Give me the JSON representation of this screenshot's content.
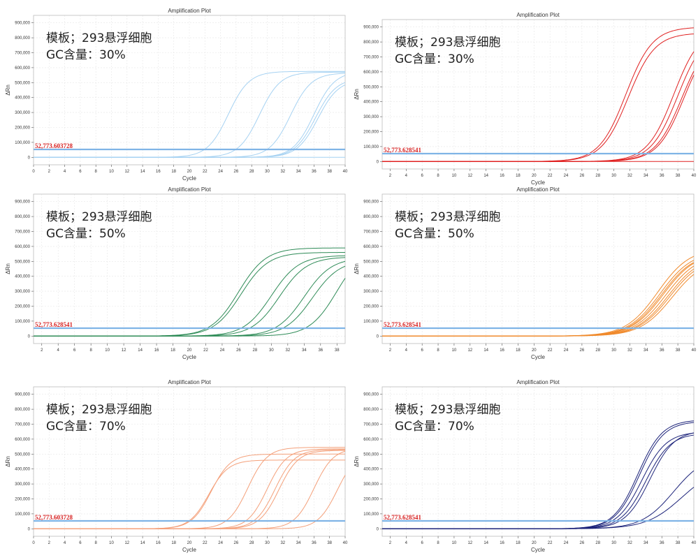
{
  "colors": {
    "threshold": "#7fb4e6",
    "grid": "#e6e6e6",
    "frame": "#bdbdbd",
    "threshold_text": "#d62020"
  },
  "chart_data": [
    {
      "type": "line",
      "title": "Amplification Plot",
      "xlabel": "Cycle",
      "ylabel": "ΔRn",
      "xlim": [
        0,
        40
      ],
      "ylim": [
        -50000,
        950000
      ],
      "xticks": [
        0,
        2,
        4,
        6,
        8,
        10,
        12,
        14,
        16,
        18,
        20,
        22,
        24,
        26,
        28,
        30,
        32,
        34,
        36,
        38,
        40
      ],
      "yticks": [
        0,
        100000,
        200000,
        300000,
        400000,
        500000,
        600000,
        700000,
        800000,
        900000
      ],
      "ytick_labels": [
        "0",
        "100,000",
        "200,000",
        "300,000",
        "400,000",
        "500,000",
        "600,000",
        "700,000",
        "800,000",
        "900,000"
      ],
      "threshold": 52773.603728,
      "threshold_label": "52,773.603728",
      "overlay": [
        "模板；293悬浮细胞",
        "GC含量：30%"
      ],
      "color": "#a6d2f2",
      "series": [
        {
          "plateau": 575000,
          "ct": 25.0,
          "k": 0.75
        },
        {
          "plateau": 570000,
          "ct": 29.0,
          "k": 0.75
        },
        {
          "plateau": 565000,
          "ct": 33.0,
          "k": 0.75
        },
        {
          "plateau": 575000,
          "ct": 36.0,
          "k": 0.75
        },
        {
          "plateau": 530000,
          "ct": 36.2,
          "k": 0.75
        },
        {
          "plateau": 520000,
          "ct": 36.5,
          "k": 0.75
        },
        {
          "plateau": 0,
          "ct": 40,
          "k": 0.5
        }
      ]
    },
    {
      "type": "line",
      "title": "Amplification Plot",
      "xlabel": "Cycle",
      "ylabel": "ΔRn",
      "xlim": [
        1,
        40
      ],
      "ylim": [
        -50000,
        950000
      ],
      "xticks": [
        2,
        4,
        6,
        8,
        10,
        12,
        14,
        16,
        18,
        20,
        22,
        24,
        26,
        28,
        30,
        32,
        34,
        36,
        38,
        40
      ],
      "yticks": [
        0,
        100000,
        200000,
        300000,
        400000,
        500000,
        600000,
        700000,
        800000,
        900000
      ],
      "ytick_labels": [
        "0",
        "100,000",
        "200,000",
        "300,000",
        "400,000",
        "500,000",
        "600,000",
        "700,000",
        "800,000",
        "900,000"
      ],
      "threshold": 52773.628541,
      "threshold_label": "52,773.628541",
      "overlay": [
        "模板；293悬浮细胞",
        "GC含量：30%"
      ],
      "color": "#e02020",
      "series": [
        {
          "plateau": 900000,
          "ct": 31.5,
          "k": 0.6
        },
        {
          "plateau": 860000,
          "ct": 31.8,
          "k": 0.6
        },
        {
          "plateau": 900000,
          "ct": 37.5,
          "k": 0.6
        },
        {
          "plateau": 880000,
          "ct": 38.0,
          "k": 0.6
        },
        {
          "plateau": 850000,
          "ct": 38.5,
          "k": 0.6
        },
        {
          "plateau": 860000,
          "ct": 38.8,
          "k": 0.6
        },
        {
          "plateau": 0,
          "ct": 40,
          "k": 0.5
        }
      ]
    },
    {
      "type": "line",
      "title": "Amplification Plot",
      "xlabel": "Cycle",
      "ylabel": "ΔRn",
      "xlim": [
        1,
        39
      ],
      "ylim": [
        -50000,
        950000
      ],
      "xticks": [
        2,
        4,
        6,
        8,
        10,
        12,
        14,
        16,
        18,
        20,
        22,
        24,
        26,
        28,
        30,
        32,
        34,
        36,
        38
      ],
      "yticks": [
        0,
        100000,
        200000,
        300000,
        400000,
        500000,
        600000,
        700000,
        800000,
        900000
      ],
      "ytick_labels": [
        "0",
        "100,000",
        "200,000",
        "300,000",
        "400,000",
        "500,000",
        "600,000",
        "700,000",
        "800,000",
        "900,000"
      ],
      "threshold": 52773.628541,
      "threshold_label": "52,773.628541",
      "overlay": [
        "模板；293悬浮细胞",
        "GC含量：50%"
      ],
      "color": "#2e8b57",
      "series": [
        {
          "plateau": 590000,
          "ct": 26.0,
          "k": 0.6
        },
        {
          "plateau": 560000,
          "ct": 26.3,
          "k": 0.6
        },
        {
          "plateau": 540000,
          "ct": 30.0,
          "k": 0.6
        },
        {
          "plateau": 530000,
          "ct": 31.0,
          "k": 0.6
        },
        {
          "plateau": 525000,
          "ct": 34.0,
          "k": 0.6
        },
        {
          "plateau": 510000,
          "ct": 35.0,
          "k": 0.6
        },
        {
          "plateau": 600000,
          "ct": 38.0,
          "k": 0.6
        }
      ]
    },
    {
      "type": "line",
      "title": "Amplification Plot",
      "xlabel": "Cycle",
      "ylabel": "ΔRn",
      "xlim": [
        1,
        40
      ],
      "ylim": [
        -50000,
        950000
      ],
      "xticks": [
        2,
        4,
        6,
        8,
        10,
        12,
        14,
        16,
        18,
        20,
        22,
        24,
        26,
        28,
        30,
        32,
        34,
        36,
        38,
        40
      ],
      "yticks": [
        0,
        100000,
        200000,
        300000,
        400000,
        500000,
        600000,
        700000,
        800000,
        900000
      ],
      "ytick_labels": [
        "0",
        "100,000",
        "200,000",
        "300,000",
        "400,000",
        "500,000",
        "600,000",
        "700,000",
        "800,000",
        "900,000"
      ],
      "threshold": 52773.628541,
      "threshold_label": "52,773.628541",
      "overlay": [
        "模板；293悬浮细胞",
        "GC含量：50%"
      ],
      "color": "#f08a2c",
      "series": [
        {
          "plateau": 590000,
          "ct": 35.5,
          "k": 0.5
        },
        {
          "plateau": 570000,
          "ct": 35.8,
          "k": 0.5
        },
        {
          "plateau": 560000,
          "ct": 36.0,
          "k": 0.5
        },
        {
          "plateau": 560000,
          "ct": 36.2,
          "k": 0.5
        },
        {
          "plateau": 550000,
          "ct": 36.5,
          "k": 0.5
        },
        {
          "plateau": 540000,
          "ct": 36.8,
          "k": 0.5
        },
        {
          "plateau": 530000,
          "ct": 37.0,
          "k": 0.5
        },
        {
          "plateau": 520000,
          "ct": 37.3,
          "k": 0.5
        }
      ]
    },
    {
      "type": "line",
      "title": "Amplification Plot",
      "xlabel": "Cycle",
      "ylabel": "ΔRn",
      "xlim": [
        0,
        40
      ],
      "ylim": [
        -50000,
        950000
      ],
      "xticks": [
        0,
        2,
        4,
        6,
        8,
        10,
        12,
        14,
        16,
        18,
        20,
        22,
        24,
        26,
        28,
        30,
        32,
        34,
        36,
        38,
        40
      ],
      "yticks": [
        0,
        100000,
        200000,
        300000,
        400000,
        500000,
        600000,
        700000,
        800000,
        900000
      ],
      "ytick_labels": [
        "0",
        "100,000",
        "200,000",
        "300,000",
        "400,000",
        "500,000",
        "600,000",
        "700,000",
        "800,000",
        "900,000"
      ],
      "threshold": 52773.603728,
      "threshold_label": "52,773.603728",
      "overlay": [
        "模板；293悬浮细胞",
        "GC含量：70%"
      ],
      "color": "#f4a07a",
      "series": [
        {
          "plateau": 460000,
          "ct": 22.5,
          "k": 0.8
        },
        {
          "plateau": 500000,
          "ct": 22.8,
          "k": 0.8
        },
        {
          "plateau": 545000,
          "ct": 27.5,
          "k": 0.8
        },
        {
          "plateau": 535000,
          "ct": 30.0,
          "k": 0.8
        },
        {
          "plateau": 530000,
          "ct": 31.0,
          "k": 0.8
        },
        {
          "plateau": 525000,
          "ct": 31.5,
          "k": 0.8
        },
        {
          "plateau": 540000,
          "ct": 36.0,
          "k": 0.8
        },
        {
          "plateau": 520000,
          "ct": 39.0,
          "k": 0.8
        }
      ]
    },
    {
      "type": "line",
      "title": "Amplification Plot",
      "xlabel": "Cycle",
      "ylabel": "ΔRn",
      "xlim": [
        1,
        40
      ],
      "ylim": [
        -50000,
        950000
      ],
      "xticks": [
        2,
        4,
        6,
        8,
        10,
        12,
        14,
        16,
        18,
        20,
        22,
        24,
        26,
        28,
        30,
        32,
        34,
        36,
        38,
        40
      ],
      "yticks": [
        0,
        100000,
        200000,
        300000,
        400000,
        500000,
        600000,
        700000,
        800000,
        900000
      ],
      "ytick_labels": [
        "0",
        "100,000",
        "200,000",
        "300,000",
        "400,000",
        "500,000",
        "600,000",
        "700,000",
        "800,000",
        "900,000"
      ],
      "threshold": 52773.628541,
      "threshold_label": "52,773.628541",
      "overlay": [
        "模板；293悬浮细胞",
        "GC含量：70%"
      ],
      "color": "#1c237a",
      "series": [
        {
          "plateau": 730000,
          "ct": 33.0,
          "k": 0.65
        },
        {
          "plateau": 720000,
          "ct": 33.2,
          "k": 0.65
        },
        {
          "plateau": 650000,
          "ct": 33.5,
          "k": 0.65
        },
        {
          "plateau": 640000,
          "ct": 34.0,
          "k": 0.65
        },
        {
          "plateau": 660000,
          "ct": 34.5,
          "k": 0.65
        },
        {
          "plateau": 500000,
          "ct": 37.5,
          "k": 0.5
        },
        {
          "plateau": 420000,
          "ct": 38.5,
          "k": 0.45
        }
      ]
    }
  ]
}
